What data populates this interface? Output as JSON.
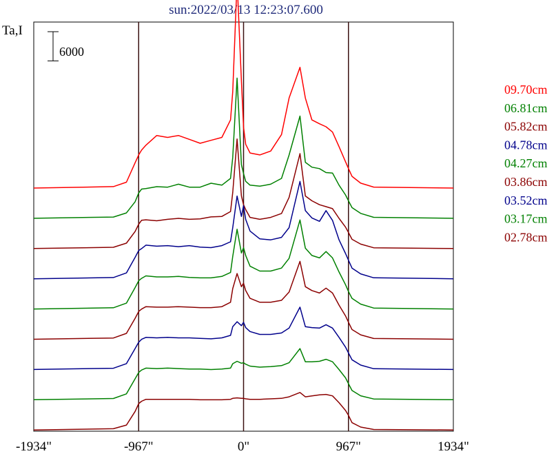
{
  "chart_data": {
    "type": "line",
    "title": "sun:2022/03/13 12:23:07.600",
    "ylabel": "Ta,I",
    "xlabel": "",
    "x_unit": "arcsec",
    "xlim": [
      -1934,
      1934
    ],
    "x_ticks": [
      {
        "value": -1934,
        "label": "-1934\""
      },
      {
        "value": -967,
        "label": "-967\""
      },
      {
        "value": 0,
        "label": "0\""
      },
      {
        "value": 967,
        "label": "967\""
      },
      {
        "value": 1934,
        "label": "1934\""
      }
    ],
    "vertical_lines": [
      -967,
      0,
      967
    ],
    "scale_bar": {
      "value": 6000,
      "label": "6000"
    },
    "grid": false,
    "legend_position": "right",
    "x": [
      -1934,
      -1200,
      -1080,
      -1000,
      -967,
      -940,
      -900,
      -800,
      -700,
      -600,
      -500,
      -400,
      -300,
      -200,
      -120,
      -100,
      -60,
      -20,
      0,
      20,
      60,
      150,
      250,
      350,
      420,
      520,
      570,
      630,
      700,
      760,
      820,
      880,
      940,
      967,
      1000,
      1080,
      1200,
      1934
    ],
    "series": [
      {
        "name": "09.70cm",
        "color": "#ff0000",
        "values": [
          0,
          300,
          1200,
          5200,
          6800,
          7800,
          8800,
          10800,
          10400,
          10800,
          10000,
          9200,
          9800,
          10400,
          14000,
          19800,
          42600,
          22000,
          12500,
          9000,
          7200,
          6800,
          7600,
          11000,
          18500,
          24800,
          18500,
          14000,
          13200,
          12600,
          11500,
          8500,
          5400,
          4000,
          2400,
          1000,
          200,
          0
        ]
      },
      {
        "name": "06.81cm",
        "color": "#008000",
        "values": [
          0,
          250,
          1100,
          3400,
          5200,
          6000,
          6100,
          6500,
          6400,
          7000,
          6400,
          6400,
          7200,
          6800,
          8200,
          12500,
          28800,
          11000,
          9200,
          7600,
          6800,
          6600,
          7000,
          8200,
          13000,
          21000,
          11500,
          10500,
          10200,
          9400,
          9300,
          6800,
          4800,
          3600,
          2200,
          1000,
          200,
          0
        ]
      },
      {
        "name": "05.82cm",
        "color": "#8b0000",
        "values": [
          0,
          250,
          1100,
          3500,
          5000,
          5800,
          5900,
          5700,
          6000,
          6200,
          6000,
          6100,
          6500,
          6600,
          7600,
          11500,
          22500,
          10800,
          9000,
          8000,
          6400,
          6000,
          6400,
          7200,
          10500,
          19500,
          10800,
          9800,
          9000,
          8600,
          8200,
          6200,
          4400,
          3300,
          1900,
          900,
          150,
          0
        ]
      },
      {
        "name": "04.78cm",
        "color": "#00008b",
        "values": [
          0,
          250,
          1200,
          4400,
          5800,
          6200,
          6900,
          6700,
          6800,
          6600,
          6800,
          6500,
          6400,
          6800,
          7600,
          10500,
          17000,
          12800,
          15000,
          12200,
          9800,
          8200,
          8000,
          8500,
          10500,
          20000,
          14000,
          12500,
          11800,
          14000,
          12000,
          8000,
          5200,
          3800,
          2200,
          1000,
          200,
          0
        ]
      },
      {
        "name": "04.27cm",
        "color": "#008000",
        "values": [
          0,
          250,
          1200,
          4400,
          5800,
          6300,
          6800,
          6600,
          6600,
          6700,
          6500,
          6400,
          6400,
          6700,
          7500,
          10800,
          16400,
          11500,
          12600,
          11000,
          8800,
          7800,
          7800,
          8400,
          10400,
          18300,
          12500,
          11000,
          10500,
          11800,
          10500,
          7600,
          5000,
          3600,
          2200,
          1000,
          200,
          0
        ]
      },
      {
        "name": "03.86cm",
        "color": "#8b0000",
        "values": [
          0,
          250,
          1200,
          4300,
          5700,
          6200,
          6700,
          6600,
          6600,
          6700,
          6600,
          6500,
          6500,
          6700,
          7600,
          10400,
          13500,
          10800,
          11500,
          10000,
          8400,
          7600,
          7600,
          8000,
          9700,
          16000,
          10800,
          10000,
          9500,
          10500,
          9500,
          7000,
          4800,
          3500,
          2000,
          900,
          150,
          0
        ]
      },
      {
        "name": "03.52cm",
        "color": "#00008b",
        "values": [
          0,
          250,
          1200,
          4300,
          5600,
          6200,
          6600,
          6500,
          6600,
          6500,
          6500,
          6400,
          6300,
          6500,
          7000,
          8800,
          9800,
          9000,
          9700,
          8600,
          7800,
          7200,
          7200,
          7500,
          8500,
          12800,
          8800,
          8600,
          8500,
          9200,
          8500,
          6600,
          4600,
          3400,
          2000,
          900,
          150,
          0
        ]
      },
      {
        "name": "03.17cm",
        "color": "#008000",
        "values": [
          0,
          250,
          1200,
          4300,
          5600,
          6100,
          6500,
          6400,
          6500,
          6400,
          6300,
          6300,
          6200,
          6300,
          6500,
          7400,
          7900,
          7500,
          7600,
          7300,
          6900,
          6700,
          6800,
          7000,
          7600,
          10500,
          7800,
          7800,
          7900,
          8300,
          7800,
          6200,
          4500,
          3300,
          1900,
          800,
          150,
          0
        ]
      },
      {
        "name": "02.78cm",
        "color": "#8b0000",
        "values": [
          0,
          250,
          1000,
          3800,
          5400,
          5900,
          6300,
          6300,
          6300,
          6300,
          6300,
          6200,
          6200,
          6200,
          6300,
          6500,
          6600,
          6500,
          6500,
          6400,
          6300,
          6300,
          6400,
          6500,
          6800,
          7700,
          6800,
          7000,
          7200,
          7300,
          7000,
          5600,
          4000,
          3000,
          1500,
          600,
          100,
          0
        ]
      }
    ]
  }
}
